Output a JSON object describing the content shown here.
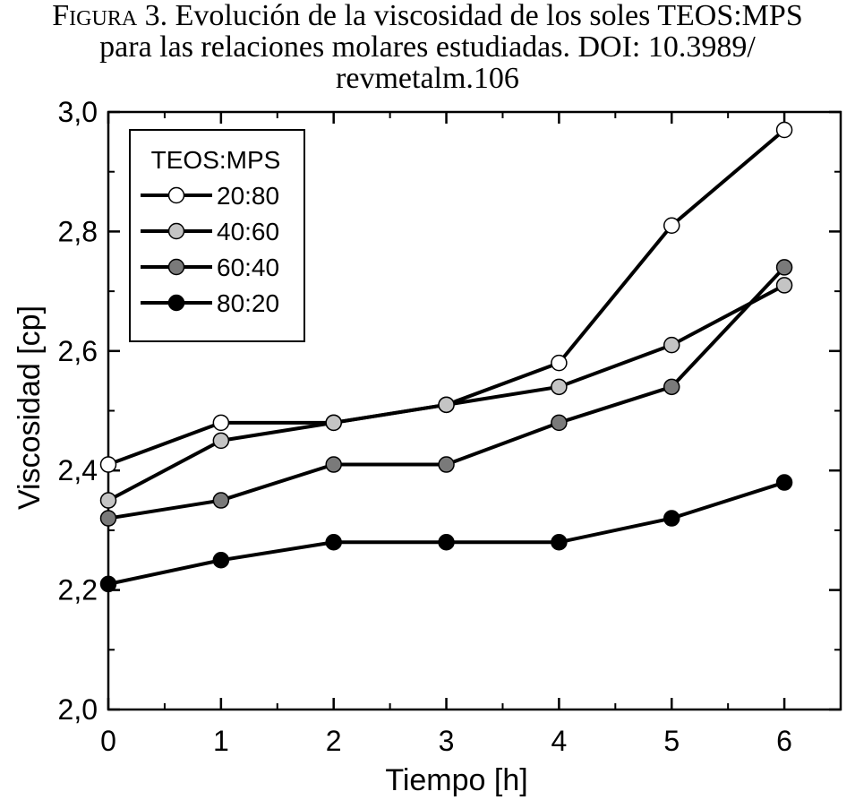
{
  "caption": {
    "lead": "Figura 3.",
    "line1_rest": " Evolución de la viscosidad de los soles TEOS:MPS",
    "line2": "para las relaciones molares estudiadas. DOI: 10.3989/",
    "line3": "revmetalm.106"
  },
  "chart_data": {
    "type": "line",
    "xlabel": "Tiempo [h]",
    "ylabel": "Viscosidad [cp]",
    "xlim": [
      0,
      6.5
    ],
    "ylim": [
      2.0,
      3.0
    ],
    "x_ticks": [
      0,
      1,
      2,
      3,
      4,
      5,
      6
    ],
    "x_tick_labels": [
      "0",
      "1",
      "2",
      "3",
      "4",
      "5",
      "6"
    ],
    "y_ticks": [
      2.0,
      2.2,
      2.4,
      2.6,
      2.8,
      3.0
    ],
    "y_tick_labels": [
      "2,0",
      "2,2",
      "2,4",
      "2,6",
      "2,8",
      "3,0"
    ],
    "grid": false,
    "legend_title": "TEOS:MPS",
    "legend_position": "top-left",
    "series": [
      {
        "name": "20:80",
        "marker_color": "#ffffff",
        "x": [
          0,
          1,
          2,
          3,
          4,
          5,
          6
        ],
        "y": [
          2.41,
          2.48,
          2.48,
          2.51,
          2.58,
          2.81,
          2.97
        ]
      },
      {
        "name": "40:60",
        "marker_color": "#c4c4c4",
        "x": [
          0,
          1,
          2,
          3,
          4,
          5,
          6
        ],
        "y": [
          2.35,
          2.45,
          2.48,
          2.51,
          2.54,
          2.61,
          2.71
        ]
      },
      {
        "name": "60:40",
        "marker_color": "#7a7a7a",
        "x": [
          0,
          1,
          2,
          3,
          4,
          5,
          6
        ],
        "y": [
          2.32,
          2.35,
          2.41,
          2.41,
          2.48,
          2.54,
          2.74
        ]
      },
      {
        "name": "80:20",
        "marker_color": "#000000",
        "x": [
          0,
          1,
          2,
          3,
          4,
          5,
          6
        ],
        "y": [
          2.21,
          2.25,
          2.28,
          2.28,
          2.28,
          2.32,
          2.38
        ]
      }
    ]
  }
}
